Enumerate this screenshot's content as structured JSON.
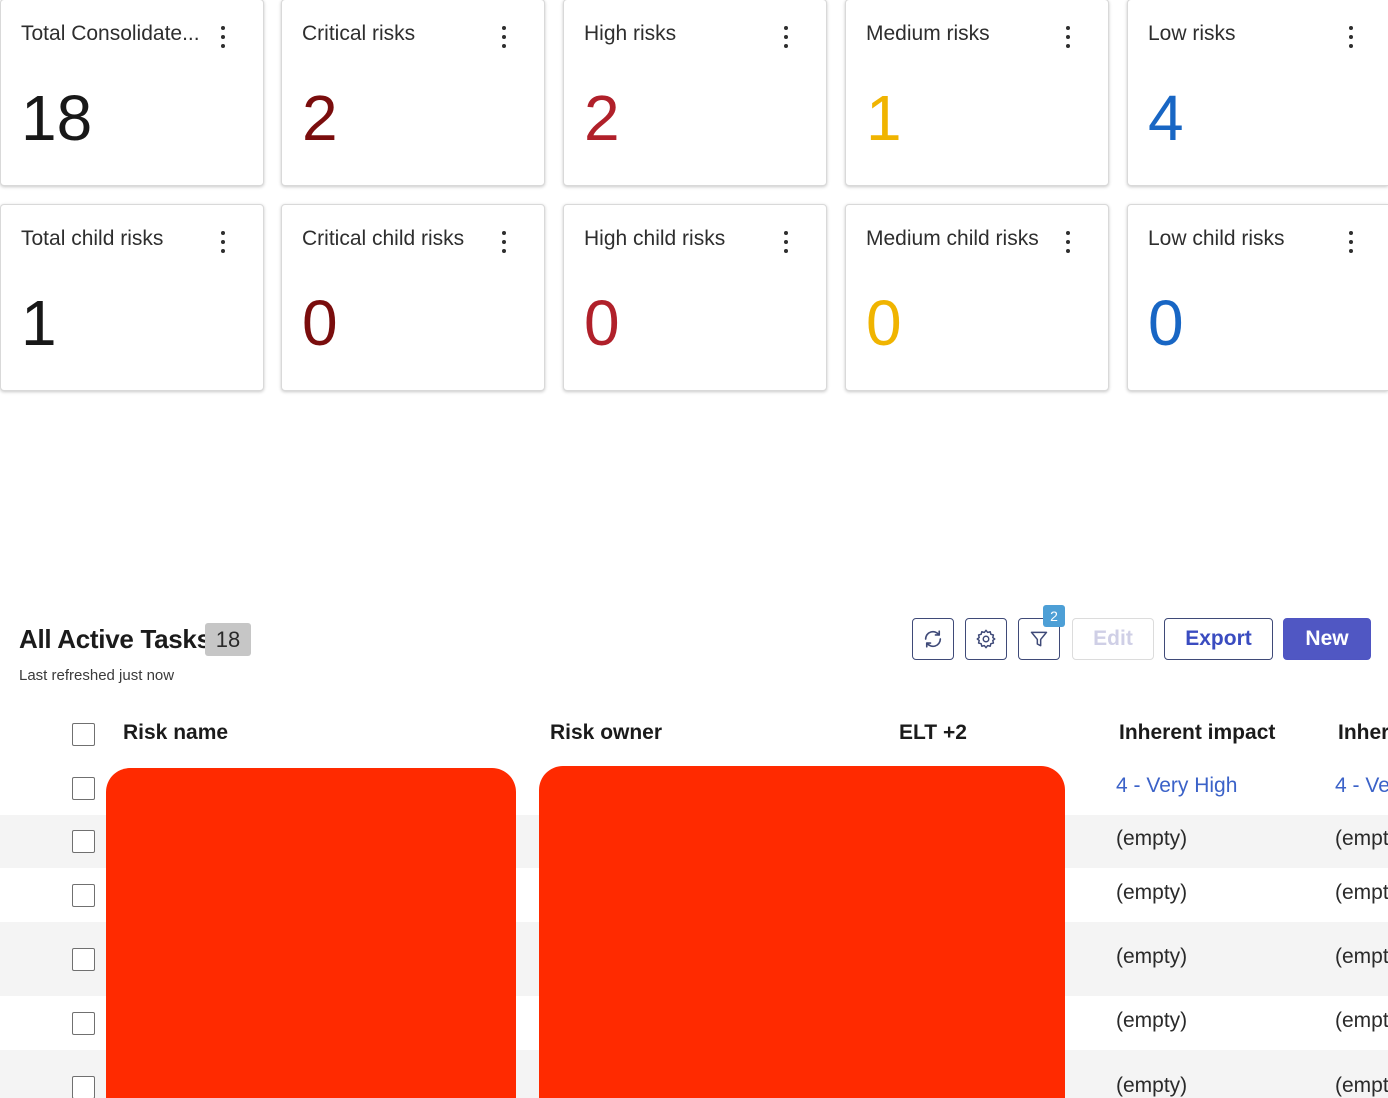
{
  "cards_row1": [
    {
      "title": "Total Consolidate...",
      "value": "18",
      "color": "#181818"
    },
    {
      "title": "Critical risks",
      "value": "2",
      "color": "#7a0d0d"
    },
    {
      "title": "High risks",
      "value": "2",
      "color": "#b0202a"
    },
    {
      "title": "Medium risks",
      "value": "1",
      "color": "#f0b400"
    },
    {
      "title": "Low risks",
      "value": "4",
      "color": "#1866c4"
    }
  ],
  "cards_row2": [
    {
      "title": "Total child risks",
      "value": "1",
      "color": "#181818"
    },
    {
      "title": "Critical child risks",
      "value": "0",
      "color": "#7a0d0d"
    },
    {
      "title": "High child risks",
      "value": "0",
      "color": "#b0202a"
    },
    {
      "title": "Medium child risks",
      "value": "0",
      "color": "#f0b400"
    },
    {
      "title": "Low child risks",
      "value": "0",
      "color": "#1866c4"
    }
  ],
  "list": {
    "title": "All Active Tasks",
    "count": "18",
    "refresh_note": "Last refreshed just now",
    "filter_count": "2",
    "buttons": {
      "edit": "Edit",
      "export": "Export",
      "new": "New"
    }
  },
  "table": {
    "headers": [
      "Risk name",
      "Risk owner",
      "ELT +2",
      "Inherent impact",
      "Inhere"
    ],
    "rows": [
      {
        "impact": "4 - Very High",
        "likelihood": "4 - Ve",
        "link": true
      },
      {
        "impact": "(empty)",
        "likelihood": "(empt",
        "link": false
      },
      {
        "impact": "(empty)",
        "likelihood": "(empt",
        "link": false
      },
      {
        "impact": "(empty)",
        "likelihood": "(empt",
        "link": false
      },
      {
        "impact": "(empty)",
        "likelihood": "(empt",
        "link": false
      },
      {
        "impact": "(empty)",
        "likelihood": "(empt",
        "link": false
      }
    ]
  },
  "colors": {
    "redaction": "#ff2a00",
    "primary": "#5057c3"
  }
}
